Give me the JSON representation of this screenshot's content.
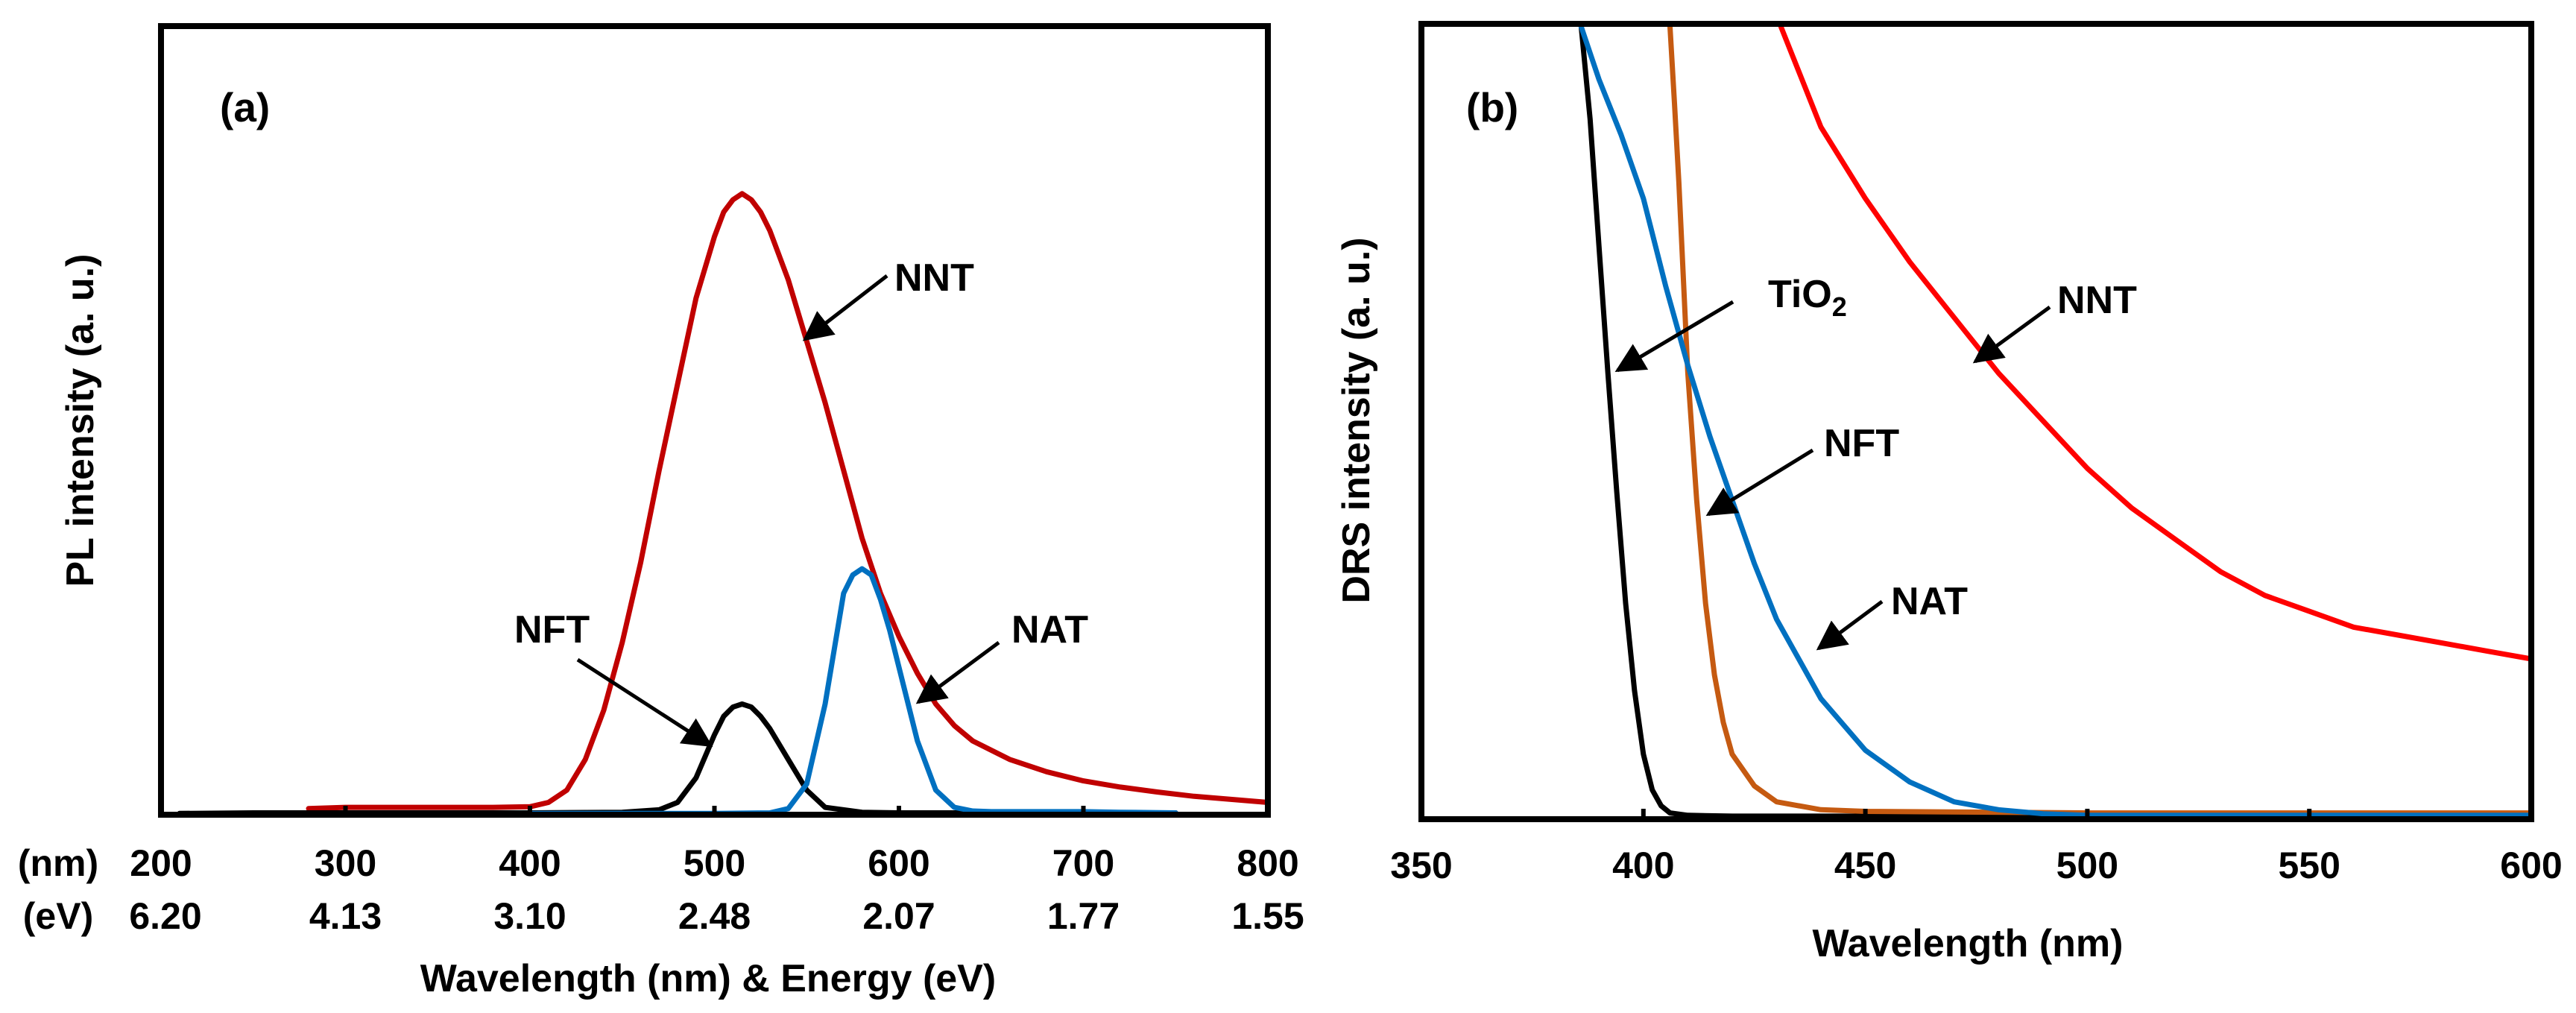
{
  "chart_data": [
    {
      "panel": "(a)",
      "type": "line",
      "xlabel": "Wavelength (nm) & Energy (eV)",
      "ylabel": "PL intensity (a. u.)",
      "xlim": [
        200,
        800
      ],
      "ylim": [
        0,
        1
      ],
      "grid": false,
      "unit_row_labels": [
        "(nm)",
        "(eV)"
      ],
      "xticks_nm": [
        "200",
        "300",
        "400",
        "500",
        "600",
        "700",
        "800"
      ],
      "xticks_ev": [
        "6.20",
        "4.13",
        "3.10",
        "2.48",
        "2.07",
        "1.77",
        "1.55"
      ],
      "series": [
        {
          "name": "NNT",
          "color": "#c00000",
          "x": [
            280,
            300,
            320,
            340,
            360,
            380,
            400,
            410,
            420,
            430,
            440,
            450,
            460,
            470,
            480,
            490,
            500,
            505,
            510,
            515,
            520,
            525,
            530,
            540,
            550,
            560,
            570,
            580,
            590,
            600,
            610,
            620,
            630,
            640,
            660,
            680,
            700,
            720,
            740,
            760,
            780,
            800
          ],
          "y": [
            0.01,
            0.012,
            0.012,
            0.012,
            0.012,
            0.012,
            0.013,
            0.02,
            0.04,
            0.09,
            0.17,
            0.28,
            0.41,
            0.56,
            0.7,
            0.84,
            0.94,
            0.98,
            1.0,
            1.01,
            1.0,
            0.98,
            0.95,
            0.87,
            0.77,
            0.67,
            0.56,
            0.45,
            0.36,
            0.29,
            0.23,
            0.18,
            0.145,
            0.12,
            0.09,
            0.07,
            0.055,
            0.045,
            0.037,
            0.03,
            0.025,
            0.02
          ]
        },
        {
          "name": "NFT",
          "color": "#000000",
          "x": [
            210,
            250,
            300,
            350,
            400,
            450,
            470,
            480,
            490,
            500,
            505,
            510,
            515,
            520,
            525,
            530,
            540,
            550,
            560,
            580,
            600,
            650,
            700,
            750
          ],
          "y": [
            0.002,
            0.003,
            0.003,
            0.003,
            0.003,
            0.004,
            0.008,
            0.02,
            0.06,
            0.13,
            0.16,
            0.175,
            0.18,
            0.175,
            0.16,
            0.14,
            0.09,
            0.04,
            0.012,
            0.004,
            0.003,
            0.003,
            0.003,
            0.003
          ]
        },
        {
          "name": "NAT",
          "color": "#0070c0",
          "x": [
            400,
            450,
            500,
            530,
            540,
            550,
            560,
            565,
            570,
            575,
            580,
            585,
            590,
            595,
            600,
            610,
            620,
            630,
            640,
            650,
            660,
            680,
            700,
            720,
            750
          ],
          "y": [
            0.002,
            0.002,
            0.002,
            0.003,
            0.01,
            0.05,
            0.18,
            0.27,
            0.36,
            0.39,
            0.4,
            0.39,
            0.35,
            0.3,
            0.24,
            0.12,
            0.04,
            0.012,
            0.006,
            0.005,
            0.005,
            0.005,
            0.005,
            0.004,
            0.003
          ]
        }
      ],
      "annotations": [
        "NNT",
        "NFT",
        "NAT"
      ]
    },
    {
      "panel": "(b)",
      "type": "line",
      "xlabel": "Wavelength (nm)",
      "ylabel": "DRS intensity (a. u.)",
      "xlim": [
        350,
        600
      ],
      "ylim": [
        0,
        1
      ],
      "grid": false,
      "xticks": [
        "350",
        "400",
        "450",
        "500",
        "550",
        "600"
      ],
      "series": [
        {
          "name": "TiO2",
          "color": "#000000",
          "x": [
            386,
            388,
            390,
            392,
            394,
            396,
            398,
            400,
            402,
            404,
            406,
            410,
            420,
            450,
            500,
            600
          ],
          "y": [
            1.0,
            0.88,
            0.72,
            0.56,
            0.41,
            0.27,
            0.16,
            0.08,
            0.035,
            0.015,
            0.006,
            0.003,
            0.002,
            0.002,
            0.002,
            0.002
          ]
        },
        {
          "name": "NFT",
          "color": "#c55a11",
          "x": [
            406,
            407,
            408,
            409,
            410,
            412,
            414,
            416,
            418,
            420,
            425,
            430,
            440,
            450,
            500,
            550,
            600
          ],
          "y": [
            1.0,
            0.9,
            0.8,
            0.68,
            0.56,
            0.4,
            0.27,
            0.18,
            0.12,
            0.08,
            0.04,
            0.02,
            0.01,
            0.008,
            0.006,
            0.006,
            0.006
          ]
        },
        {
          "name": "NAT",
          "color": "#0070c0",
          "x": [
            386,
            390,
            395,
            400,
            405,
            410,
            415,
            420,
            425,
            430,
            440,
            450,
            460,
            470,
            480,
            490,
            500,
            520,
            550,
            600
          ],
          "y": [
            1.0,
            0.93,
            0.86,
            0.78,
            0.67,
            0.57,
            0.48,
            0.4,
            0.32,
            0.25,
            0.15,
            0.085,
            0.045,
            0.02,
            0.01,
            0.005,
            0.003,
            0.003,
            0.003,
            0.003
          ]
        },
        {
          "name": "NNT",
          "color": "#ff0000",
          "x": [
            431,
            435,
            440,
            450,
            460,
            470,
            480,
            490,
            500,
            510,
            520,
            530,
            540,
            550,
            560,
            570,
            580,
            590,
            600
          ],
          "y": [
            1.0,
            0.94,
            0.87,
            0.78,
            0.7,
            0.63,
            0.56,
            0.5,
            0.44,
            0.39,
            0.35,
            0.31,
            0.28,
            0.26,
            0.24,
            0.23,
            0.22,
            0.21,
            0.2
          ]
        }
      ],
      "annotations": [
        "TiO",
        "2",
        "NFT",
        "NAT",
        "NNT"
      ]
    }
  ]
}
